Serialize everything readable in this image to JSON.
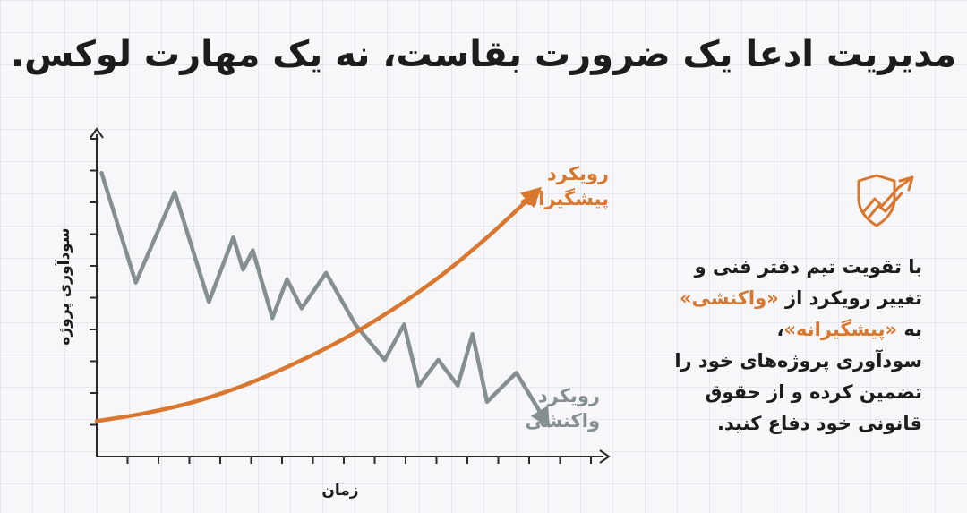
{
  "title": "مدیریت ادعا یک ضرورت بقاست، نه یک مهارت لوکس.",
  "body_text": {
    "line1": "با تقویت تیم دفتر فنی و",
    "line2_prefix": "تغییر رویکرد از ",
    "line2_highlight": "«واکنشی»",
    "line3_prefix": "به ",
    "line3_highlight": "«پیشگیرانه»",
    "line3_suffix": "،",
    "line4": "سودآوری پروژه‌های خود را",
    "line5": "تضمین کرده و از حقوق",
    "line6": "قانونی خود دفاع کنید."
  },
  "colors": {
    "proactive": "#d9772f",
    "reactive": "#858f8f",
    "axis": "#2a2a2a",
    "text": "#1c1c1c"
  },
  "icon": "shield-with-rising-arrow-icon",
  "chart_data": {
    "type": "line",
    "xlabel": "زمان",
    "ylabel": "سودآوری پروژه",
    "x_ticks_count": 16,
    "y_ticks_count": 10,
    "grid": false,
    "series": [
      {
        "name": "رویکرد واکنشی",
        "label_line1": "رویکرد",
        "label_line2": "واکنشی",
        "points": [
          [
            0.1,
            8.8
          ],
          [
            0.8,
            5.4
          ],
          [
            1.6,
            8.2
          ],
          [
            2.3,
            4.8
          ],
          [
            2.8,
            6.8
          ],
          [
            3.0,
            5.8
          ],
          [
            3.2,
            6.4
          ],
          [
            3.6,
            4.3
          ],
          [
            3.9,
            5.5
          ],
          [
            4.2,
            4.6
          ],
          [
            4.7,
            5.7
          ],
          [
            5.3,
            4.1
          ],
          [
            5.9,
            3.0
          ],
          [
            6.3,
            4.1
          ],
          [
            6.6,
            2.2
          ],
          [
            7.0,
            3.0
          ],
          [
            7.4,
            2.2
          ],
          [
            7.7,
            3.8
          ],
          [
            8.0,
            1.7
          ],
          [
            8.6,
            2.6
          ],
          [
            9.2,
            1.1
          ]
        ]
      },
      {
        "name": "رویکرد پیشگیرانه",
        "label_line1": "رویکرد",
        "label_line2": "پیشگیرانه",
        "points": [
          [
            0.0,
            1.1
          ],
          [
            1.0,
            1.35
          ],
          [
            2.0,
            1.7
          ],
          [
            3.0,
            2.2
          ],
          [
            4.0,
            2.85
          ],
          [
            5.0,
            3.6
          ],
          [
            6.0,
            4.5
          ],
          [
            7.0,
            5.55
          ],
          [
            8.0,
            6.8
          ],
          [
            9.0,
            8.2
          ]
        ]
      }
    ]
  }
}
